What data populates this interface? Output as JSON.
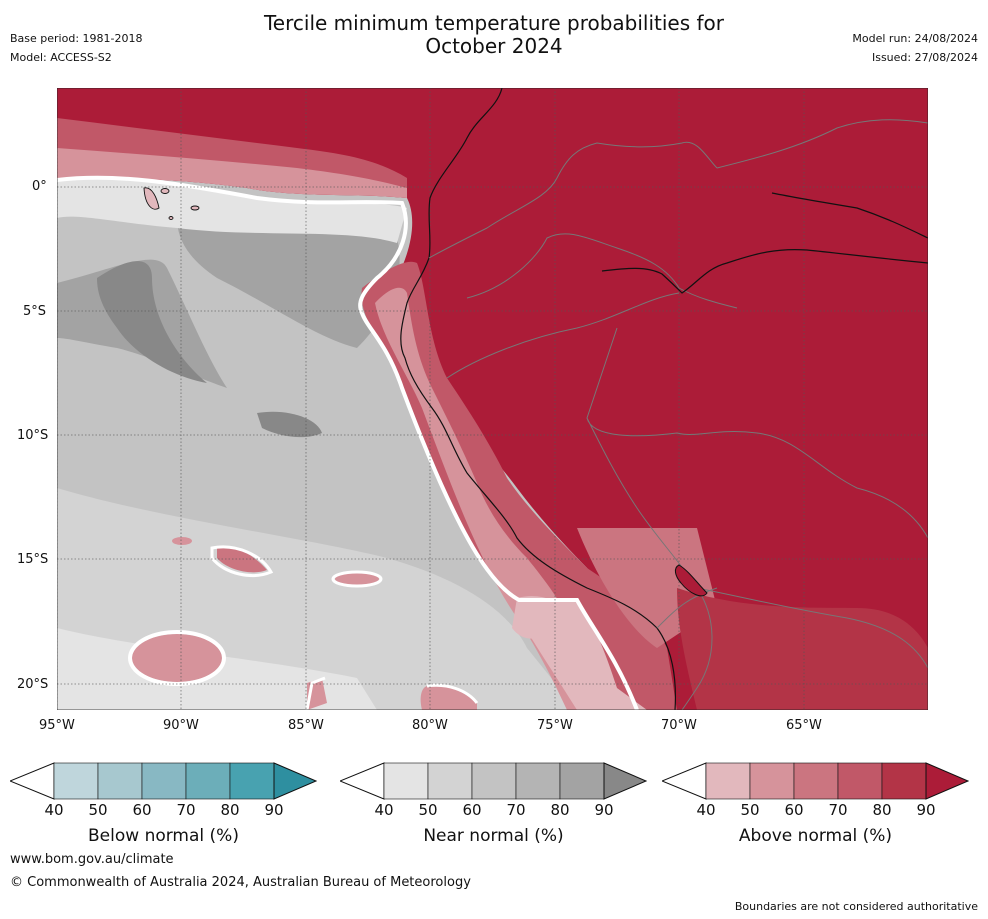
{
  "header": {
    "title_line1": "Tercile minimum temperature probabilities for",
    "title_line2": "October 2024",
    "base_period": "Base period: 1981-2018",
    "model": "Model: ACCESS-S2",
    "model_run": "Model run: 24/08/2024",
    "issued": "Issued: 27/08/2024"
  },
  "axes": {
    "lat_labels": [
      "0°",
      "5°S",
      "10°S",
      "15°S",
      "20°S"
    ],
    "lon_labels": [
      "95°W",
      "90°W",
      "85°W",
      "80°W",
      "75°W",
      "70°W",
      "65°W"
    ]
  },
  "colorbars": [
    {
      "label": "Below normal (%)",
      "ticks": [
        "40",
        "50",
        "60",
        "70",
        "80",
        "90"
      ],
      "colors": [
        "#bfd6dc",
        "#a7c8cf",
        "#88b8c3",
        "#6caeb9",
        "#48a2b0",
        "#2e8fa0"
      ]
    },
    {
      "label": "Near normal (%)",
      "ticks": [
        "40",
        "50",
        "60",
        "70",
        "80",
        "90"
      ],
      "colors": [
        "#e4e4e4",
        "#d3d3d3",
        "#c3c3c3",
        "#b4b4b4",
        "#a3a3a3",
        "#888888"
      ]
    },
    {
      "label": "Above normal (%)",
      "ticks": [
        "40",
        "50",
        "60",
        "70",
        "80",
        "90"
      ],
      "colors": [
        "#e2b8bd",
        "#d6939b",
        "#cb7580",
        "#c15868",
        "#b33447",
        "#ac1c38"
      ]
    }
  ],
  "footer": {
    "url": "www.bom.gov.au/climate",
    "copyright": "© Commonwealth of Australia 2024, Australian Bureau of Meteorology",
    "disclaimer": "Boundaries are not considered authoritative"
  }
}
